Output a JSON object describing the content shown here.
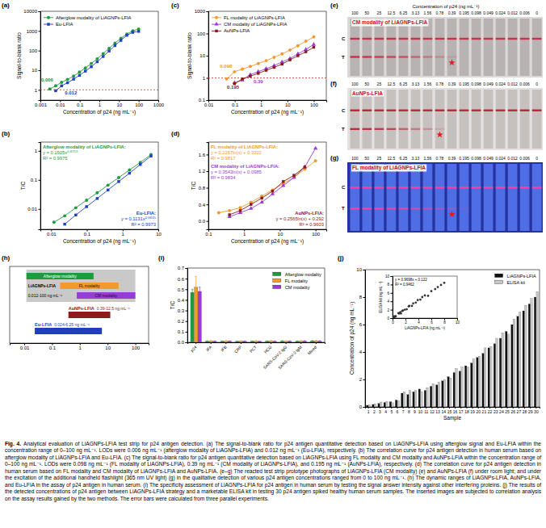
{
  "chart_data": [
    {
      "panel_label": "(a)",
      "type": "line",
      "log": true,
      "x_label": "Concentration of p24 (ng mL⁻¹)",
      "y_label": "Signal-to-blank ratio",
      "xlim": [
        0.001,
        1000
      ],
      "xticks": [
        0.001,
        0.01,
        0.1,
        1,
        10,
        100,
        1000
      ],
      "ylim": [
        0.3,
        10000
      ],
      "yticks": [
        1,
        10,
        100,
        1000,
        10000
      ],
      "threshold": 1,
      "legend": "top-left",
      "series": [
        {
          "name": "Afterglow modality of LiAGNPs-LFIA",
          "color": "#1e9b3c",
          "marker": "circle",
          "x": [
            0.003,
            0.006,
            0.012,
            0.024,
            0.049,
            0.098,
            0.195,
            0.39,
            0.78,
            1.56,
            3.13,
            6.25,
            12.5,
            25,
            50,
            100
          ],
          "values": [
            1.1,
            1.6,
            2.4,
            3.4,
            5,
            8,
            13,
            22,
            38,
            70,
            130,
            240,
            420,
            700,
            1000,
            1250
          ],
          "annotation": {
            "x": 0.006,
            "text": "0.006"
          }
        },
        {
          "name": "Eu-LFIA",
          "color": "#2140c0",
          "marker": "square",
          "x": [
            0.006,
            0.012,
            0.024,
            0.049,
            0.098,
            0.195,
            0.39,
            0.78,
            1.56,
            3.13,
            6.25,
            12.5,
            25,
            50,
            100
          ],
          "values": [
            0.9,
            1.6,
            2.3,
            3.5,
            5.5,
            9,
            15,
            27,
            50,
            95,
            180,
            330,
            600,
            850,
            950
          ],
          "annotation": {
            "x": 0.012,
            "text": "0.012"
          }
        }
      ]
    },
    {
      "panel_label": "(b)",
      "type": "line",
      "log": true,
      "x_label": "Concentration of p24 (ng mL⁻¹)",
      "y_label": "T/C",
      "xlim": [
        0.005,
        10
      ],
      "xticks": [
        0.01,
        0.1,
        1,
        10
      ],
      "ylim": [
        0.002,
        2
      ],
      "yticks": [
        0.01,
        0.1,
        1
      ],
      "series": [
        {
          "name": "Afterglow modality of LiAGNPs-LFIA:",
          "color": "#1e9b3c",
          "marker": "circle",
          "x": [
            0.012,
            0.024,
            0.049,
            0.098,
            0.195,
            0.39,
            0.78,
            1.56,
            3.13,
            6.25
          ],
          "values": [
            0.0035,
            0.0058,
            0.011,
            0.02,
            0.036,
            0.066,
            0.12,
            0.22,
            0.4,
            0.74
          ],
          "equation": "y = 0.1505x",
          "exponent": "0.8713",
          "r2": "R² = 0.9975"
        },
        {
          "name": "Eu-LFIA:",
          "color": "#2140c0",
          "marker": "square",
          "x": [
            0.024,
            0.049,
            0.098,
            0.195,
            0.39,
            0.78,
            1.56,
            3.13,
            6.25
          ],
          "values": [
            0.003,
            0.0062,
            0.012,
            0.023,
            0.045,
            0.088,
            0.17,
            0.34,
            0.66
          ],
          "equation": "y = 0.1131x",
          "exponent": "0.9615",
          "r2": "R² = 0.9973"
        }
      ]
    },
    {
      "panel_label": "(c)",
      "type": "line",
      "log": true,
      "x_label": "Concentration of p24 (ng mL⁻¹)",
      "y_label": "Signal-to-blank ratio",
      "xlim": [
        0.01,
        300
      ],
      "xticks": [
        0.01,
        0.1,
        1,
        10,
        100
      ],
      "ylim": [
        0.1,
        1000
      ],
      "yticks": [
        0.1,
        1,
        10,
        100,
        1000
      ],
      "threshold": 1,
      "legend": "top-left",
      "series": [
        {
          "name": "FL modality of LiAGNPs-LFIA",
          "color": "#f39a2a",
          "marker": "circle",
          "x": [
            0.049,
            0.098,
            0.195,
            0.39,
            0.78,
            1.56,
            3.13,
            6.25,
            12.5,
            25,
            50,
            100
          ],
          "values": [
            0.9,
            1.9,
            2.5,
            3.3,
            4.4,
            6,
            8.5,
            12,
            18,
            28,
            45,
            70
          ],
          "annotation": {
            "x": 0.098,
            "text": "0.098"
          }
        },
        {
          "name": "CM modality of LiAGNPs-LFIA",
          "color": "#9a3bd6",
          "marker": "triangle",
          "x": [
            0.098,
            0.195,
            0.39,
            0.78,
            1.56,
            3.13,
            6.25,
            12.5,
            25,
            50,
            100
          ],
          "values": [
            0.6,
            0.8,
            1.4,
            1.9,
            2.6,
            3.6,
            5.2,
            7.5,
            12,
            19,
            32
          ],
          "annotation": {
            "x": 0.39,
            "text": "0.39"
          }
        },
        {
          "name": "AuNPs-LFIA",
          "color": "#8b1a1a",
          "marker": "square",
          "x": [
            0.098,
            0.195,
            0.39,
            0.78,
            1.56,
            3.13,
            6.25,
            12.5,
            25,
            50,
            100
          ],
          "values": [
            0.55,
            0.9,
            1.2,
            1.6,
            2.2,
            3,
            4.2,
            6.5,
            10,
            15,
            24
          ],
          "annotation": {
            "x": 0.195,
            "text": "0.195"
          }
        }
      ]
    },
    {
      "panel_label": "(d)",
      "type": "line",
      "log": "x",
      "x_label": "Concentration of p24 (ng mL⁻¹)",
      "y_label": "T/C",
      "xlim": [
        0.1,
        200
      ],
      "xticks": [
        0.1,
        1,
        10,
        100
      ],
      "ylim": [
        -0.2,
        1.9
      ],
      "yticks": [
        {
          "value": 0,
          "label": "0.0"
        },
        0.4,
        0.8,
        1.2,
        1.6
      ],
      "series": [
        {
          "name": "FL modality of LiAGNPs-LFIA:",
          "color": "#f39a2a",
          "marker": "circle",
          "x": [
            0.195,
            0.39,
            0.78,
            1.56,
            3.13,
            6.25,
            12.5,
            25,
            50,
            100
          ],
          "values": [
            0.2,
            0.25,
            0.32,
            0.45,
            0.6,
            0.75,
            0.9,
            1.05,
            1.25,
            1.45
          ],
          "equation": "y = 0.2267ln(x) + 0.3322",
          "r2": "R² = 0.9817"
        },
        {
          "name": "CM modality of LiAGNPs-LFIA:",
          "color": "#9a3bd6",
          "marker": "triangle",
          "x": [
            0.39,
            0.78,
            1.56,
            3.13,
            6.25,
            12.5,
            25,
            50,
            100
          ],
          "values": [
            0.1,
            0.2,
            0.3,
            0.45,
            0.65,
            0.85,
            1.05,
            1.3,
            1.75
          ],
          "equation": "y = 0.3543ln(x) + 0.0985",
          "r2": "R² = 0.9834"
        },
        {
          "name": "AuNPs-LFIA:",
          "color": "#8b1a1a",
          "marker": "square",
          "x": [
            0.39,
            0.78,
            1.56,
            3.13,
            6.25,
            12.5,
            25,
            50
          ],
          "values": [
            0.15,
            0.25,
            0.4,
            0.55,
            0.72,
            0.95,
            1.1,
            1.3
          ],
          "equation": "y = 0.2565ln(x) + 0.292",
          "r2": "R² = 0.9603"
        }
      ]
    },
    {
      "panel_label": "(e)",
      "type": "test_strip",
      "x_label": "Concentration of p24 (ng mL⁻¹)",
      "title": "CM modality of LiAGNPs-LFIA",
      "categories": [
        "100",
        "50",
        "25",
        "12.5",
        "6.25",
        "3.13",
        "1.56",
        "0.78",
        "0.39",
        "0.195",
        "0.098",
        "0.049",
        "0.024",
        "0.012",
        "0.006",
        "0"
      ],
      "row_labels": [
        "C",
        "T"
      ],
      "values": [
        1,
        0.95,
        0.9,
        0.85,
        0.75,
        0.6,
        0.45,
        0.3,
        0.15,
        0,
        0,
        0,
        0,
        0,
        0,
        0
      ],
      "highlight": "0.39",
      "color": "#c8334a"
    },
    {
      "panel_label": "(f)",
      "type": "test_strip",
      "title": "AuNPs-LFIA",
      "categories": [
        "100",
        "50",
        "25",
        "12.5",
        "6.25",
        "3.13",
        "1.56",
        "0.78",
        "0.39",
        "0.195",
        "0.098",
        "0.049",
        "0.024",
        "0.012",
        "0.006",
        "0"
      ],
      "row_labels": [
        "C",
        "T"
      ],
      "values": [
        0.95,
        0.9,
        0.85,
        0.75,
        0.6,
        0.45,
        0.3,
        0.15,
        0,
        0,
        0,
        0,
        0,
        0,
        0,
        0
      ],
      "highlight": "0.78",
      "color": "#b52a3a"
    },
    {
      "panel_label": "(g)",
      "type": "test_strip",
      "title": "FL modality of LiAGNPs-LFIA",
      "categories": [
        "100",
        "50",
        "25",
        "12.5",
        "6.25",
        "3.13",
        "1.56",
        "0.78",
        "0.39",
        "0.195",
        "0.098",
        "0.049",
        "0.024",
        "0.012",
        "0.006",
        "0"
      ],
      "row_labels": [
        "C",
        "T"
      ],
      "values": [
        1,
        1,
        0.95,
        0.9,
        0.85,
        0.75,
        0.6,
        0.45,
        0.3,
        0.15,
        0,
        0,
        0,
        0,
        0,
        0
      ],
      "highlight": "0.39",
      "color": "#ff3ca0"
    },
    {
      "panel_label": "(h)",
      "type": "range_bar",
      "orientation": "horizontal",
      "log": "x",
      "xlim": [
        0.003,
        300
      ],
      "xticks": [
        0.01,
        0.1,
        1,
        10,
        100
      ],
      "group": {
        "name": "LiAGNPs-LFIA",
        "range_label": "0.012-100 ng mL⁻¹",
        "start": 0.012,
        "end": 100,
        "color": "#c9c9c9"
      },
      "bars": [
        {
          "name": "Afterglow modality",
          "start": 0.012,
          "end": 3.13,
          "color": "#1e9b3c",
          "in_group": true
        },
        {
          "name": "FL modality",
          "start": 0.195,
          "end": 25,
          "color": "#f39a2a",
          "in_group": true
        },
        {
          "name": "CM modality",
          "start": 0.78,
          "end": 100,
          "color": "#9a3bd6",
          "in_group": true
        },
        {
          "name": "AuNPs-LFIA",
          "range_label": "0.39-12.5 ng mL⁻¹",
          "start": 0.39,
          "end": 12.5,
          "color": "#8b1a1a"
        },
        {
          "name": "Eu-LFIA",
          "range_label": "0.024-6.25 ng mL⁻¹",
          "start": 0.024,
          "end": 6.25,
          "color": "#1f3fbf"
        }
      ]
    },
    {
      "panel_label": "(i)",
      "type": "bar",
      "y_label": "T/C",
      "categories": [
        "p24",
        "IFA",
        "IFB",
        "CRP",
        "PCT",
        "HCG",
        "SARS-CoV-2 IgG",
        "SARS-CoV-2 IgM",
        "Mixed"
      ],
      "ylim": [
        0,
        0.7
      ],
      "yticks": [
        {
          "value": 0,
          "label": "0.0"
        },
        0.1,
        0.2,
        0.3,
        0.4,
        0.5,
        0.6,
        0.7
      ],
      "legend": "top-right",
      "series": [
        {
          "name": "Afterglow modality",
          "color": "#1e9b3c",
          "values": [
            0.47,
            0.011,
            0.01,
            0.009,
            0.01,
            0.011,
            0.012,
            0.01,
            0.013
          ],
          "errors": [
            0.03,
            0.003,
            0.003,
            0.003,
            0.003,
            0.003,
            0.003,
            0.003,
            0.003
          ]
        },
        {
          "name": "FL modality",
          "color": "#f39a2a",
          "values": [
            0.52,
            0.013,
            0.012,
            0.011,
            0.012,
            0.013,
            0.011,
            0.012,
            0.014
          ],
          "errors": [
            0.1,
            0.004,
            0.004,
            0.004,
            0.004,
            0.004,
            0.004,
            0.004,
            0.004
          ]
        },
        {
          "name": "CM modality",
          "color": "#9a3bd6",
          "values": [
            0.48,
            0.01,
            0.011,
            0.01,
            0.009,
            0.01,
            0.011,
            0.012,
            0.012
          ],
          "errors": [
            0.04,
            0.003,
            0.003,
            0.003,
            0.003,
            0.003,
            0.003,
            0.003,
            0.003
          ]
        }
      ]
    },
    {
      "panel_label": "(j)",
      "type": "bar",
      "x_label": "Sample",
      "y_label": "Concentration of p24 (ng mL⁻¹)",
      "categories": [
        "1",
        "2",
        "3",
        "4",
        "5",
        "6",
        "7",
        "8",
        "9",
        "10",
        "11",
        "12",
        "13",
        "14",
        "15",
        "16",
        "17",
        "18",
        "19",
        "20",
        "21",
        "22",
        "23",
        "24",
        "25",
        "26",
        "27",
        "28",
        "29",
        "30"
      ],
      "ylim": [
        0,
        10
      ],
      "yticks": [
        0,
        2,
        4,
        6,
        8,
        10
      ],
      "legend": "top-right",
      "series": [
        {
          "name": "LiAGNPs-LFIA",
          "color": "#111111",
          "values": [
            0.12,
            0.18,
            0.25,
            0.32,
            0.38,
            0.5,
            1.0,
            0.9,
            1.1,
            1.3,
            1.2,
            1.5,
            1.6,
            1.9,
            2.2,
            2.5,
            2.6,
            3.0,
            3.2,
            3.6,
            3.9,
            4.3,
            4.6,
            5.0,
            5.5,
            6.0,
            6.6,
            7.0,
            7.5,
            8.0
          ]
        },
        {
          "name": "ELISA kit",
          "color": "#c8c8c8",
          "values": [
            0.15,
            0.22,
            0.35,
            0.4,
            0.3,
            0.45,
            1.1,
            1.2,
            1.2,
            1.1,
            1.4,
            1.7,
            1.8,
            2.0,
            2.1,
            2.8,
            2.9,
            2.9,
            3.5,
            3.7,
            4.3,
            4.4,
            5.0,
            5.4,
            5.3,
            6.4,
            6.9,
            7.4,
            7.9,
            8.4
          ]
        }
      ]
    },
    {
      "type": "scatter",
      "x_label": "LiAGNPs-LFIA (ng mL⁻¹)",
      "y_label": "ELISA kit (ng mL⁻¹)",
      "xlim": [
        0,
        10
      ],
      "xticks": [
        0,
        2,
        4,
        6,
        8,
        10
      ],
      "ylim": [
        0,
        10
      ],
      "yticks": [
        0,
        2,
        4,
        6,
        8,
        10
      ],
      "equation": "y = 0.9698x + 0.122",
      "r2": "R² = 0.9462",
      "series": [
        {
          "color": "#333333",
          "marker": "circle",
          "x": [
            0.12,
            0.18,
            0.25,
            0.32,
            0.38,
            0.5,
            1.0,
            0.9,
            1.1,
            1.3,
            1.2,
            1.5,
            1.6,
            1.9,
            2.2,
            2.5,
            2.6,
            3.0,
            3.2,
            3.6,
            3.9,
            4.3,
            4.6,
            5.0,
            5.5,
            6.0,
            6.6,
            7.0,
            7.5,
            8.0
          ],
          "values": [
            0.15,
            0.22,
            0.35,
            0.4,
            0.3,
            0.45,
            1.1,
            1.2,
            1.2,
            1.1,
            1.4,
            1.7,
            1.8,
            2.0,
            2.1,
            2.8,
            2.9,
            2.9,
            3.5,
            3.7,
            4.3,
            4.4,
            5.0,
            5.4,
            5.3,
            6.4,
            6.9,
            7.4,
            7.9,
            8.4
          ]
        }
      ]
    }
  ],
  "caption_title": "Fig. 4.",
  "caption": "Analytical evaluation of LiAGNPs-LFIA test strip for p24 antigen detection. (a) The signal-to-blank ratio for p24 antigen quantitative detection based on LiAGNPs-LFIA using afterglow signal and Eu-LFIA within the concentration range of 0–100 ng mL⁻¹. LODs were 0.006 ng mL⁻¹ (afterglow modality of LiAGNPs-LFIA) and 0.012 ng mL⁻¹ (Eu-LFIA), respectively. (b) The correlation curve for p24 antigen detection in human serum based on afterglow modality of LiAGNPs-LFIA and Eu-LFIA. (c) The signal-to-blank ratio for p24 antigen quantitative detection based on LiAGNPs-LFIA using FL modality and CM modality and AuNPs-LFIA within the concentration range of 0–100 ng mL⁻¹. LODs were 0.098 ng mL⁻¹ (FL modality of LiAGNPs-LFIA), 0.39 ng mL⁻¹ (CM modality of LiAGNPs-LFIA), and 0.195 ng mL⁻¹ (AuNPs-LFIA), respectively. (d) The correlation curve for p24 antigen detection in human serum based on FL modality and CM modality of LiAGNPs-LFIA and AuNPs-LFIA. (e–g) The reacted test strip prototype photographs of LiAGNPs-LFIA (CM modality) (e) and AuNPs-LFIA (f) under room light; and under the excitation of the additional handheld flashlight (365 nm UV light) (g) in the qualitative detection of various p24 antigen concentrations ranged from 0 to 100 ng mL⁻¹. (h) The dynamic ranges of LiAGNPs-LFIA, AuNPs-LFIA, and Eu-LFIA in the assay of p24 antigen in human serum. (i) The specificity assessment of LiAGNPs-LFIA for p24 antigen in human serum by testing the signal answer intensity against other interfering proteins. (j) The results of the detected concentrations of p24 antigen between LiAGNPs-LFIA strategy and a marketable ELISA kit in testing 30 p24 antigen spiked healthy human serum samples. The inserted images are subjected to correlation analysis on the assay results gained by the two methods. The error bars were calculated from three parallel experiments."
}
